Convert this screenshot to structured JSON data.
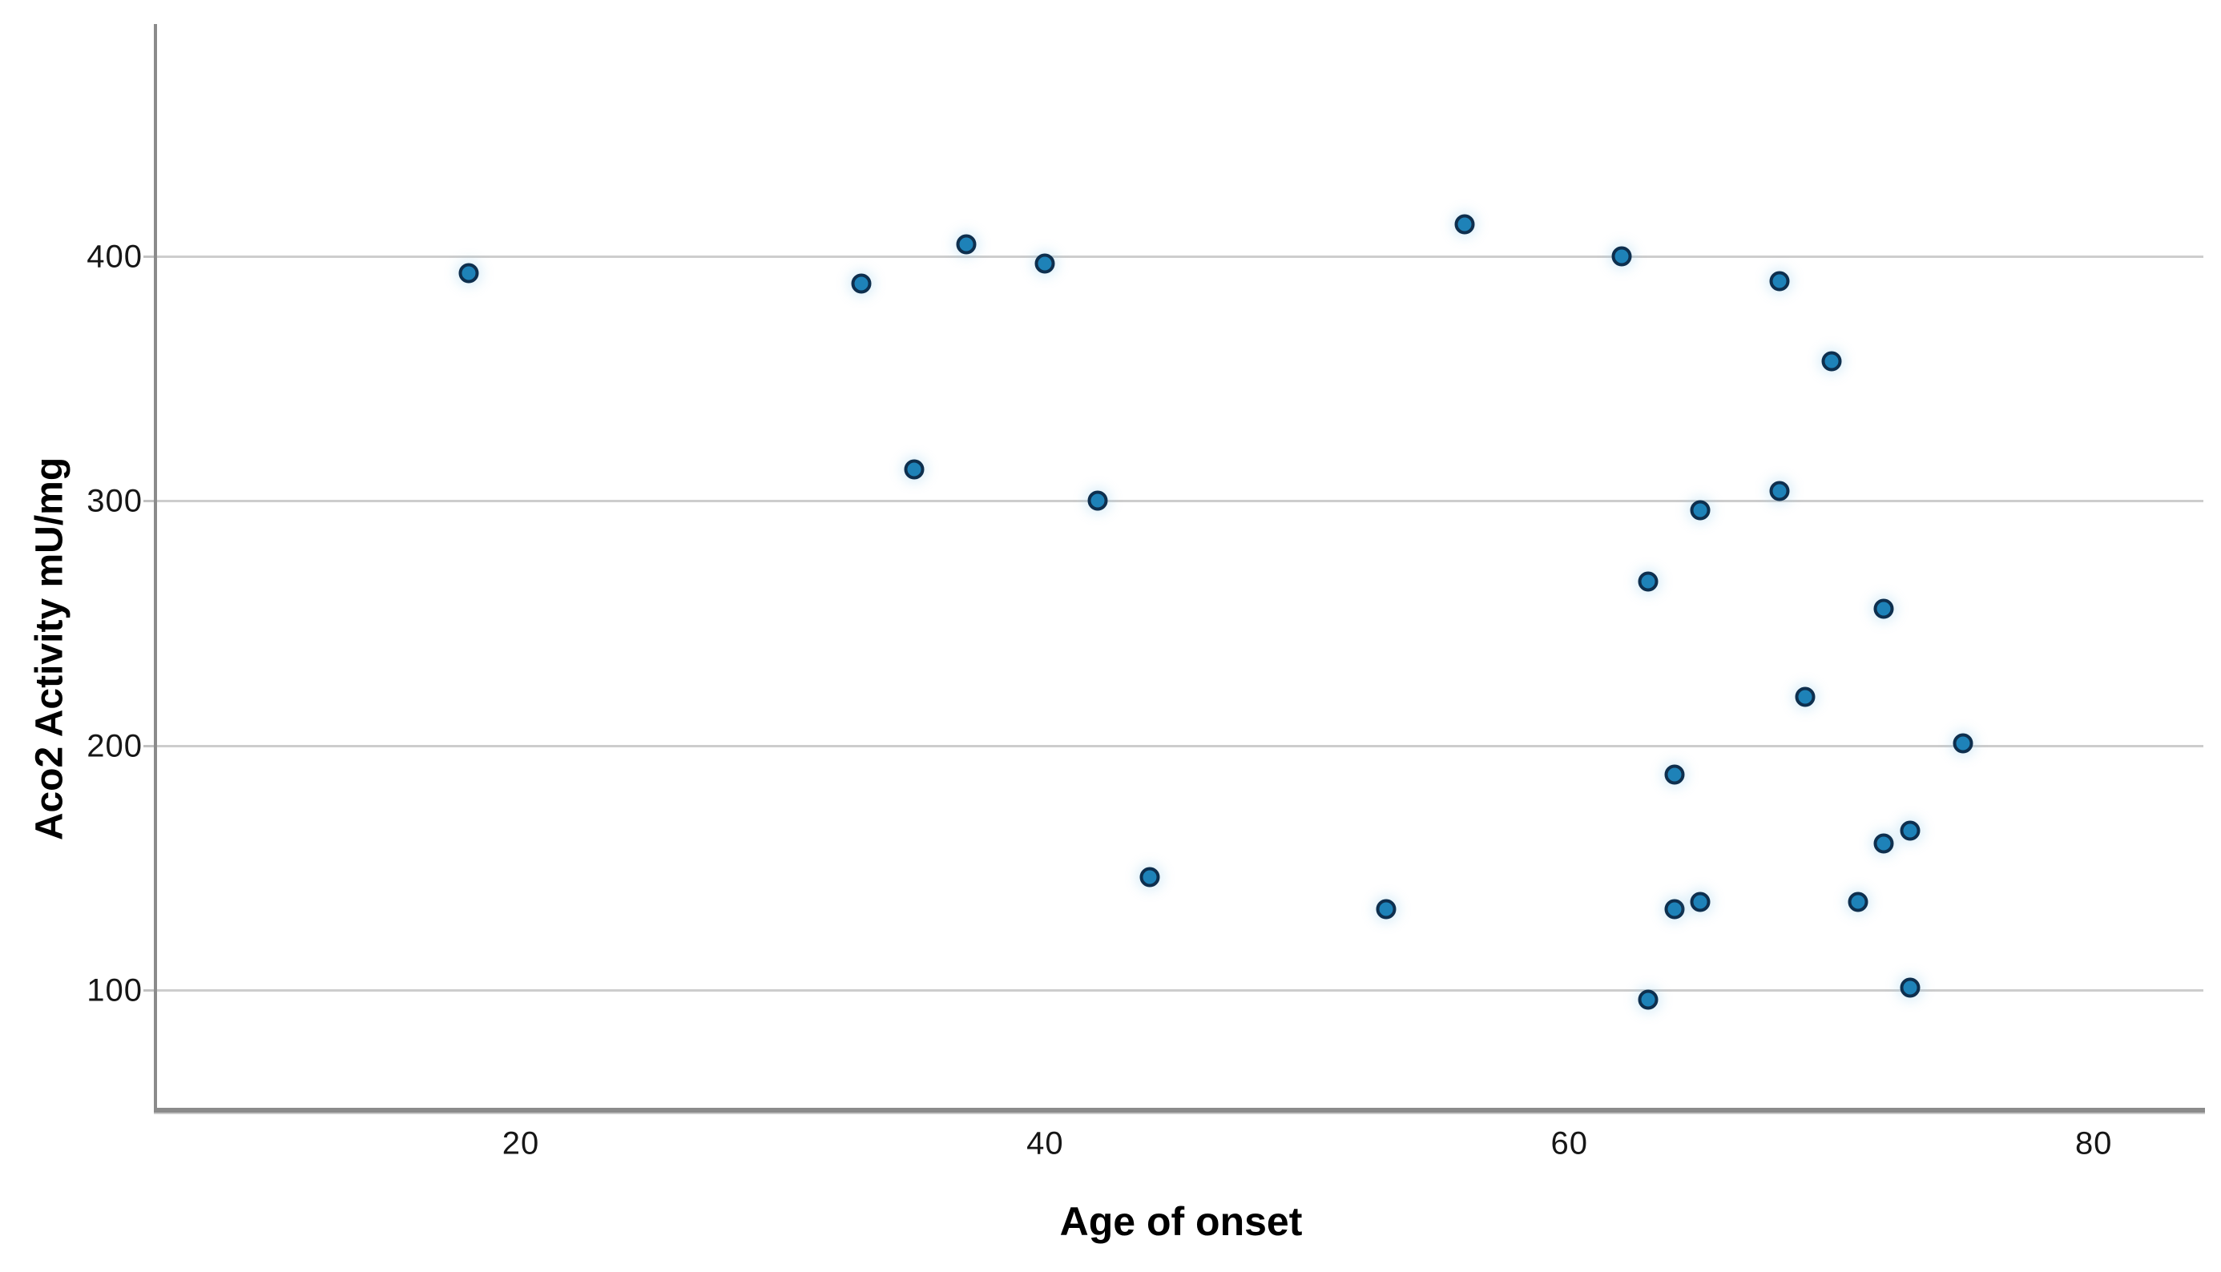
{
  "chart_data": {
    "type": "scatter",
    "title": "",
    "xlabel": "Age of onset",
    "ylabel": "Aco2 Activity mU/mg",
    "xticks": [
      20,
      40,
      60,
      80
    ],
    "yticks": [
      100,
      200,
      300,
      400
    ],
    "xlim": [
      6,
      85
    ],
    "ylim": [
      50,
      495
    ],
    "grid": "horizontal-only",
    "legend": "none",
    "points": [
      {
        "x": 18,
        "y": 393
      },
      {
        "x": 33,
        "y": 389
      },
      {
        "x": 37,
        "y": 405
      },
      {
        "x": 40,
        "y": 397
      },
      {
        "x": 35,
        "y": 313
      },
      {
        "x": 42,
        "y": 300
      },
      {
        "x": 56,
        "y": 413
      },
      {
        "x": 62,
        "y": 400
      },
      {
        "x": 68,
        "y": 390
      },
      {
        "x": 70,
        "y": 357
      },
      {
        "x": 68,
        "y": 304
      },
      {
        "x": 65,
        "y": 296
      },
      {
        "x": 63,
        "y": 267
      },
      {
        "x": 72,
        "y": 256
      },
      {
        "x": 69,
        "y": 220
      },
      {
        "x": 75,
        "y": 201
      },
      {
        "x": 64,
        "y": 188
      },
      {
        "x": 44,
        "y": 146
      },
      {
        "x": 53,
        "y": 133
      },
      {
        "x": 64,
        "y": 133
      },
      {
        "x": 65,
        "y": 136
      },
      {
        "x": 71,
        "y": 136
      },
      {
        "x": 72,
        "y": 160
      },
      {
        "x": 73,
        "y": 165
      },
      {
        "x": 63,
        "y": 96
      },
      {
        "x": 73,
        "y": 101
      }
    ]
  },
  "colors": {
    "marker_fill": "#1e82b8",
    "marker_stroke": "#0e2f4e",
    "gridline": "#cdcdcd",
    "axis": "#8b8b8b",
    "text": "#161616",
    "background": "#ffffff"
  }
}
